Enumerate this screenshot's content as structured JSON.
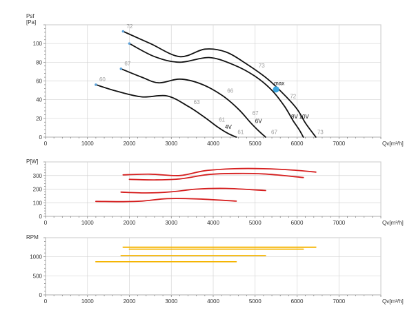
{
  "chart_data": [
    {
      "type": "line",
      "ylabel_line1": "Psf",
      "ylabel_line2": "[Pa]",
      "xlabel": "Qv[m³/h]",
      "xlim": [
        0,
        8000
      ],
      "ylim": [
        0,
        120
      ],
      "xticks": [
        0,
        1000,
        2000,
        3000,
        4000,
        5000,
        6000,
        7000
      ],
      "yticks": [
        0,
        20,
        40,
        60,
        80,
        100
      ],
      "grid": true,
      "series": [
        {
          "name": "10V",
          "color": "#111111",
          "x": [
            1850,
            2500,
            3200,
            3800,
            4300,
            4800,
            5300,
            5700,
            6000,
            6200,
            6450
          ],
          "y": [
            113,
            100,
            86,
            94,
            91,
            78,
            62,
            45,
            30,
            15,
            0
          ]
        },
        {
          "name": "8V",
          "color": "#111111",
          "x": [
            2000,
            2600,
            3200,
            3900,
            4500,
            5000,
            5400,
            5700,
            5900,
            6050,
            6150
          ],
          "y": [
            100,
            86,
            80,
            85,
            77,
            65,
            50,
            33,
            18,
            8,
            0
          ]
        },
        {
          "name": "6V",
          "color": "#111111",
          "x": [
            1800,
            2300,
            2700,
            3200,
            3700,
            4200,
            4600,
            4900,
            5100,
            5250
          ],
          "y": [
            73,
            64,
            58,
            62,
            57,
            45,
            30,
            15,
            6,
            0
          ]
        },
        {
          "name": "4V",
          "color": "#111111",
          "x": [
            1200,
            1700,
            2300,
            2900,
            3400,
            3800,
            4100,
            4350,
            4550
          ],
          "y": [
            56,
            49,
            43,
            44,
            33,
            21,
            11,
            4,
            0
          ]
        }
      ],
      "curve_labels": [
        {
          "text": "10V",
          "x": 6050,
          "y": 20
        },
        {
          "text": "8V",
          "x": 5860,
          "y": 20
        },
        {
          "text": "6V",
          "x": 5000,
          "y": 15
        },
        {
          "text": "4V",
          "x": 4280,
          "y": 9
        }
      ],
      "point_labels": [
        {
          "text": "72",
          "x": 1900,
          "y": 115
        },
        {
          "text": "67",
          "x": 1850,
          "y": 75
        },
        {
          "text": "60",
          "x": 1250,
          "y": 58
        },
        {
          "text": "73",
          "x": 5050,
          "y": 73
        },
        {
          "text": "72",
          "x": 5800,
          "y": 40
        },
        {
          "text": "66",
          "x": 4300,
          "y": 46
        },
        {
          "text": "63",
          "x": 3500,
          "y": 34
        },
        {
          "text": "67",
          "x": 4900,
          "y": 22
        },
        {
          "text": "61",
          "x": 4100,
          "y": 15
        },
        {
          "text": "61",
          "x": 4550,
          "y": 2
        },
        {
          "text": "67",
          "x": 5350,
          "y": 2
        },
        {
          "text": "73",
          "x": 6450,
          "y": 2
        }
      ],
      "markers": [
        {
          "x": 1850,
          "y": 113,
          "color": "#5aa0d8"
        },
        {
          "x": 2000,
          "y": 100,
          "color": "#5aa0d8"
        },
        {
          "x": 1800,
          "y": 73,
          "color": "#5aa0d8"
        },
        {
          "x": 1200,
          "y": 56,
          "color": "#5aa0d8"
        }
      ],
      "max_point": {
        "label": "max",
        "x": 5500,
        "y": 51,
        "color": "#3aa6e0"
      }
    },
    {
      "type": "line",
      "ylabel": "P[W]",
      "ylabel_color": "#d62020",
      "xlabel": "Qv[m³/h]",
      "xlim": [
        0,
        8000
      ],
      "ylim": [
        0,
        400
      ],
      "xticks": [
        0,
        1000,
        2000,
        3000,
        4000,
        5000,
        6000,
        7000
      ],
      "yticks": [
        0,
        100,
        200,
        300
      ],
      "grid": true,
      "series": [
        {
          "name": "10V",
          "color": "#d62020",
          "x": [
            1850,
            2500,
            3200,
            3800,
            4500,
            5200,
            5900,
            6450
          ],
          "y": [
            305,
            310,
            300,
            335,
            350,
            350,
            340,
            325
          ]
        },
        {
          "name": "8V",
          "color": "#d62020",
          "x": [
            2000,
            2600,
            3200,
            3900,
            4600,
            5300,
            6150
          ],
          "y": [
            272,
            268,
            275,
            308,
            315,
            310,
            285
          ]
        },
        {
          "name": "6V",
          "color": "#d62020",
          "x": [
            1800,
            2400,
            3000,
            3600,
            4300,
            5250
          ],
          "y": [
            178,
            172,
            180,
            200,
            205,
            190
          ]
        },
        {
          "name": "4V",
          "color": "#d62020",
          "x": [
            1200,
            1800,
            2300,
            2900,
            3600,
            4550
          ],
          "y": [
            110,
            108,
            112,
            130,
            128,
            112
          ]
        }
      ]
    },
    {
      "type": "line",
      "ylabel": "RPM",
      "ylabel_color": "#f5b400",
      "xlabel": "Qv[m³/h]",
      "xlim": [
        0,
        8000
      ],
      "ylim": [
        0,
        1500
      ],
      "xticks": [
        0,
        1000,
        2000,
        3000,
        4000,
        5000,
        6000,
        7000
      ],
      "yticks": [
        0,
        500,
        1000
      ],
      "grid": true,
      "series": [
        {
          "name": "10V",
          "color": "#f5b400",
          "x": [
            1850,
            6450
          ],
          "y": [
            1250,
            1250
          ]
        },
        {
          "name": "8V",
          "color": "#f5b400",
          "x": [
            2000,
            6150
          ],
          "y": [
            1200,
            1200
          ]
        },
        {
          "name": "6V",
          "color": "#f5b400",
          "x": [
            1800,
            5250
          ],
          "y": [
            1030,
            1030
          ]
        },
        {
          "name": "4V",
          "color": "#f5b400",
          "x": [
            1200,
            4550
          ],
          "y": [
            870,
            870
          ]
        }
      ]
    }
  ]
}
